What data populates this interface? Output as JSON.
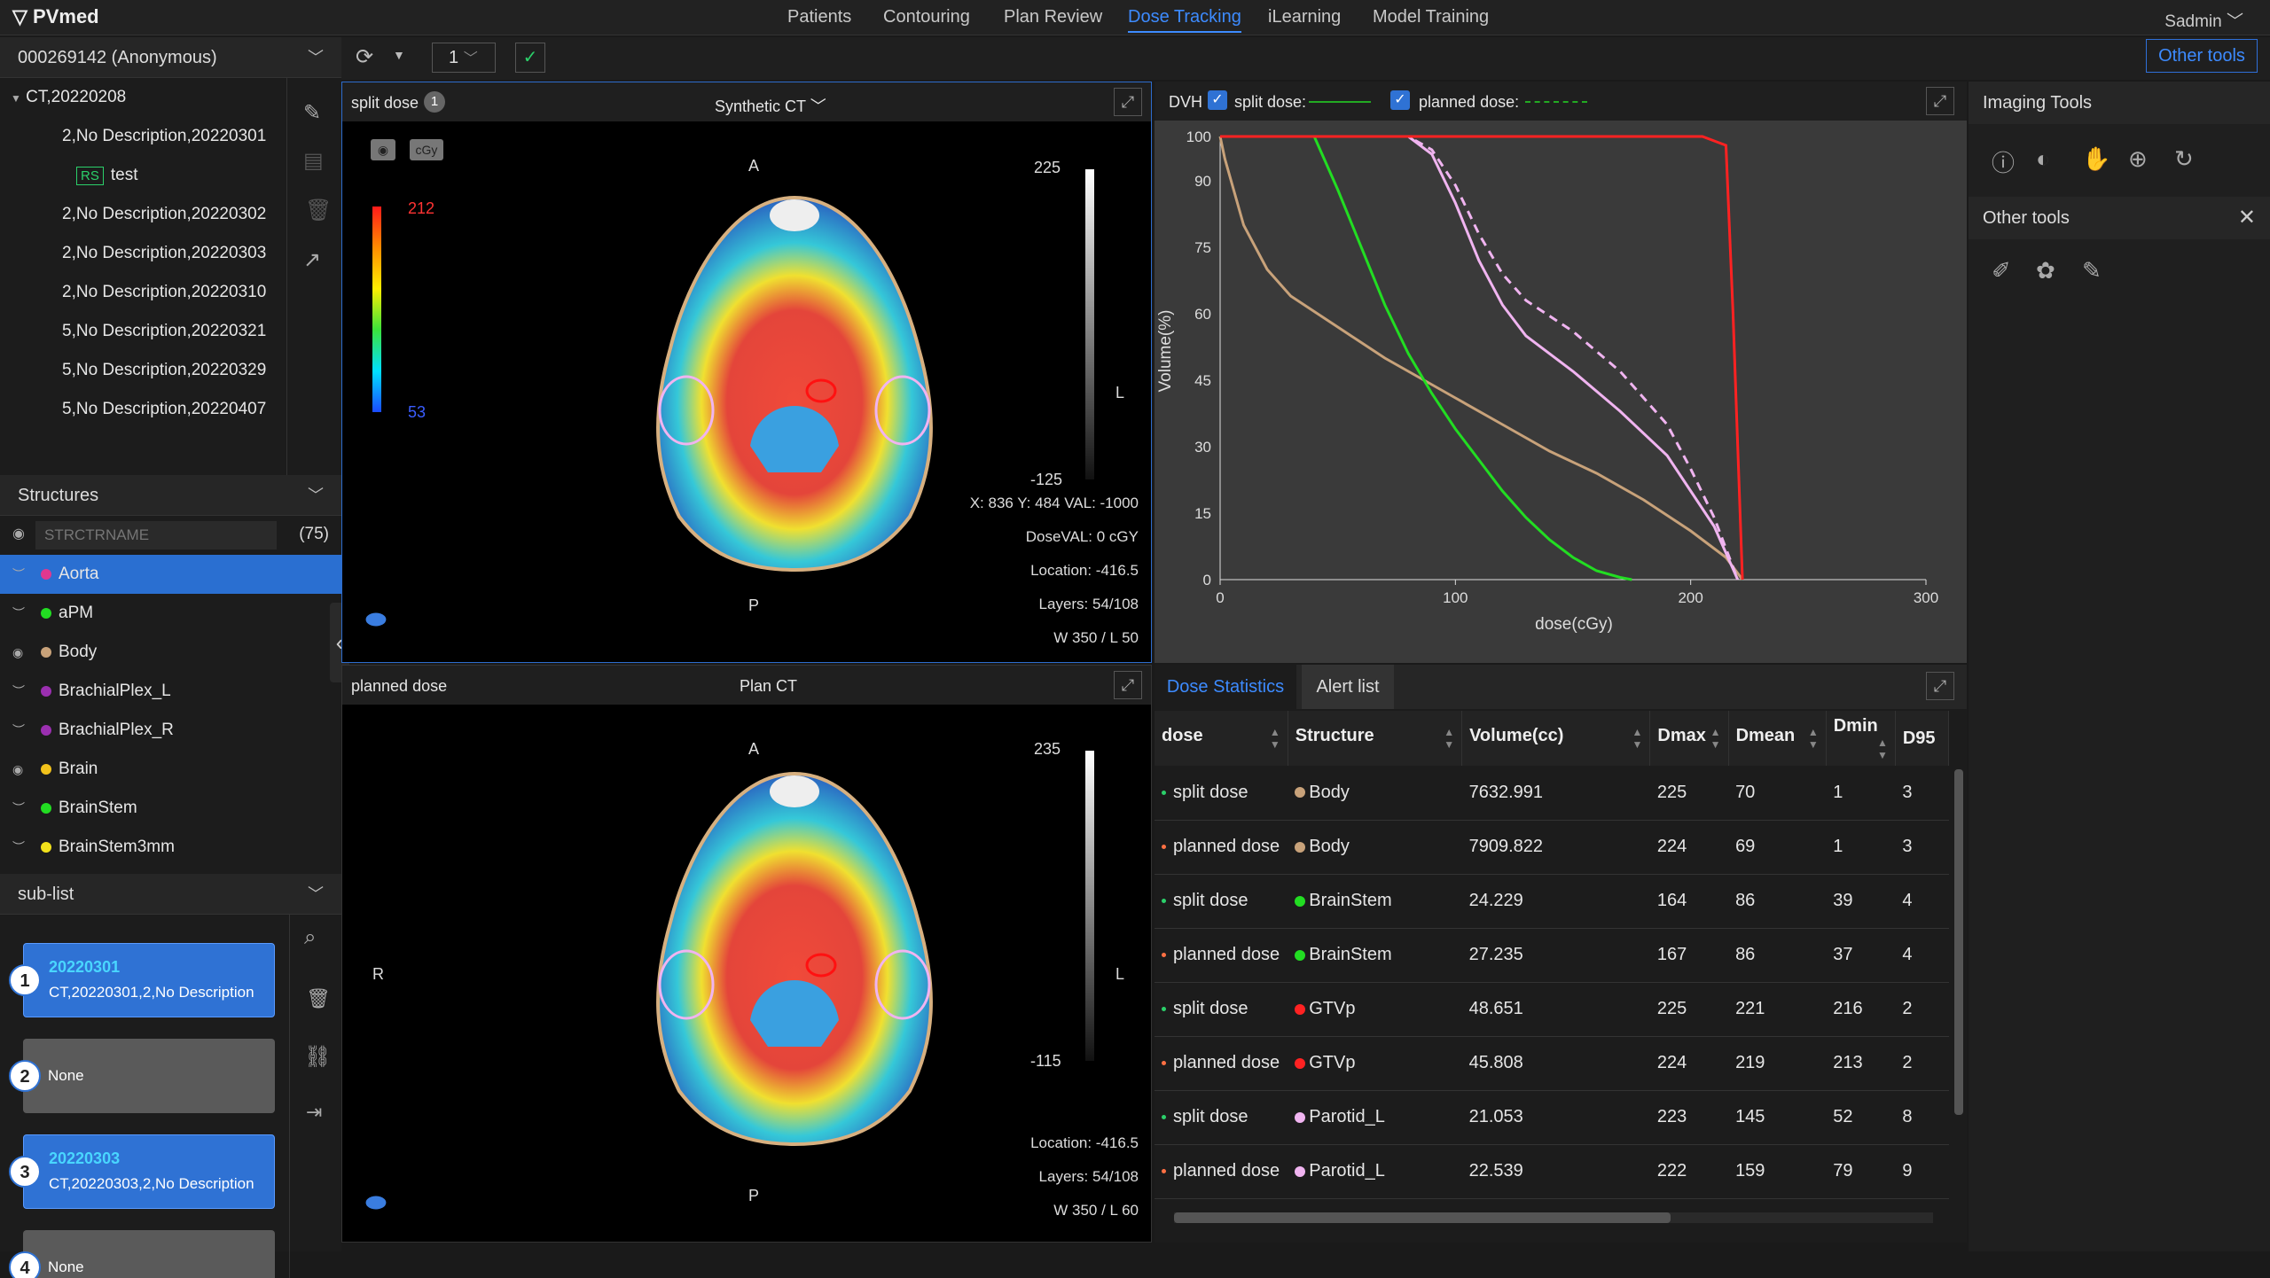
{
  "app": {
    "logo": "PVmed",
    "user": "Sadmin"
  },
  "nav": [
    {
      "label": "Patients"
    },
    {
      "label": "Contouring"
    },
    {
      "label": "Plan Review"
    },
    {
      "label": "Dose Tracking"
    },
    {
      "label": "iLearning"
    },
    {
      "label": "Model Training"
    }
  ],
  "toolbar": {
    "layer_select": "1",
    "other_tools": "Other tools"
  },
  "patient": {
    "id": "000269142 (Anonymous)",
    "ct": "CT,20220208",
    "series": [
      "2,No Description,20220301",
      "test",
      "2,No Description,20220302",
      "2,No Description,20220303",
      "2,No Description,20220310",
      "5,No Description,20220321",
      "5,No Description,20220329",
      "5,No Description,20220407"
    ],
    "rs_badge": "RS"
  },
  "structures": {
    "title": "Structures",
    "placeholder": "STRCTRNAME",
    "count": "(75)",
    "items": [
      {
        "name": "Aorta",
        "color": "#e0388f"
      },
      {
        "name": "aPM",
        "color": "#22dd22"
      },
      {
        "name": "Body",
        "color": "#c8a27a"
      },
      {
        "name": "BrachialPlex_L",
        "color": "#9b2fb0"
      },
      {
        "name": "BrachialPlex_R",
        "color": "#9b2fb0"
      },
      {
        "name": "Brain",
        "color": "#f2c21b"
      },
      {
        "name": "BrainStem",
        "color": "#22dd22"
      },
      {
        "name": "BrainStem3mm",
        "color": "#f2e21b"
      }
    ]
  },
  "sublist": {
    "title": "sub-list",
    "items": [
      {
        "n": "1",
        "date": "20220301",
        "desc": "CT,20220301,2,No Description"
      },
      {
        "n": "2",
        "date": "",
        "desc": "None"
      },
      {
        "n": "3",
        "date": "20220303",
        "desc": "CT,20220303,2,No Description"
      },
      {
        "n": "4",
        "date": "",
        "desc": "None"
      }
    ]
  },
  "view_top": {
    "title": "split dose",
    "badge": "1",
    "source": "Synthetic CT",
    "cgy": "cGy",
    "bar_max": "212",
    "bar_min": "53",
    "scale_max": "225",
    "scale_min": "-125",
    "orient_a": "A",
    "orient_p": "P",
    "orient_l": "L",
    "coord": "X: 836 Y: 484 VAL: -1000",
    "doseval": "DoseVAL: 0 cGY",
    "location": "Location: -416.5",
    "layers": "Layers: 54/108",
    "window": "W 350 / L 50"
  },
  "view_bottom": {
    "title": "planned dose",
    "source": "Plan CT",
    "scale_max": "235",
    "scale_min": "-115",
    "orient_a": "A",
    "orient_p": "P",
    "orient_l": "L",
    "orient_r": "R",
    "location": "Location: -416.5",
    "layers": "Layers: 54/108",
    "window": "W 350 / L 60"
  },
  "dvh": {
    "title": "DVH",
    "legend_split": "split dose:",
    "legend_planned": "planned dose:"
  },
  "chart_data": {
    "type": "line",
    "title": "",
    "xlabel": "dose(cGy)",
    "ylabel": "Volume(%)",
    "xlim": [
      0,
      300
    ],
    "ylim": [
      0,
      100
    ],
    "xticks": [
      0,
      100,
      200,
      300
    ],
    "yticks": [
      0,
      15,
      30,
      45,
      60,
      75,
      90,
      100
    ],
    "series": [
      {
        "color": "#c8a27a",
        "style": "solid",
        "x": [
          0,
          2,
          10,
          20,
          30,
          50,
          70,
          100,
          120,
          140,
          160,
          180,
          200,
          215,
          222
        ],
        "y": [
          100,
          95,
          80,
          70,
          64,
          57,
          50,
          41,
          35,
          29,
          24,
          18,
          11,
          5,
          0
        ]
      },
      {
        "color": "#22dd22",
        "style": "solid",
        "x": [
          40,
          50,
          60,
          70,
          80,
          90,
          100,
          110,
          120,
          130,
          140,
          150,
          160,
          170,
          175
        ],
        "y": [
          100,
          88,
          75,
          62,
          51,
          42,
          34,
          27,
          20,
          14,
          9,
          5,
          2,
          0.5,
          0
        ]
      },
      {
        "color": "#f0b4f0",
        "style": "solid",
        "x": [
          0,
          80,
          90,
          100,
          110,
          120,
          130,
          150,
          170,
          190,
          200,
          210,
          220
        ],
        "y": [
          100,
          100,
          96,
          85,
          72,
          62,
          55,
          47,
          38,
          28,
          20,
          12,
          0
        ]
      },
      {
        "color": "#f0b4f0",
        "style": "dashed",
        "x": [
          0,
          80,
          90,
          100,
          110,
          120,
          130,
          150,
          170,
          190,
          200,
          210,
          220
        ],
        "y": [
          100,
          100,
          97,
          89,
          78,
          69,
          63,
          56,
          47,
          35,
          25,
          14,
          0
        ]
      },
      {
        "color": "#ff2222",
        "style": "solid",
        "x": [
          0,
          205,
          215,
          218,
          222
        ],
        "y": [
          100,
          100,
          98,
          60,
          0
        ]
      }
    ]
  },
  "stats": {
    "tab_active": "Dose Statistics",
    "tab_other": "Alert list",
    "headers": [
      "dose",
      "Structure",
      "Volume(cc)",
      "Dmax",
      "Dmean",
      "Dmin",
      "D95"
    ],
    "rows": [
      {
        "dose": "split dose",
        "struct": "Body",
        "color": "#c8a27a",
        "vol": "7632.991",
        "dmax": "225",
        "dmean": "70",
        "dmin": "1",
        "d95": "3"
      },
      {
        "dose": "planned dose",
        "struct": "Body",
        "color": "#c8a27a",
        "vol": "7909.822",
        "dmax": "224",
        "dmean": "69",
        "dmin": "1",
        "d95": "3"
      },
      {
        "dose": "split dose",
        "struct": "BrainStem",
        "color": "#22dd22",
        "vol": "24.229",
        "dmax": "164",
        "dmean": "86",
        "dmin": "39",
        "d95": "4"
      },
      {
        "dose": "planned dose",
        "struct": "BrainStem",
        "color": "#22dd22",
        "vol": "27.235",
        "dmax": "167",
        "dmean": "86",
        "dmin": "37",
        "d95": "4"
      },
      {
        "dose": "split dose",
        "struct": "GTVp",
        "color": "#ff2222",
        "vol": "48.651",
        "dmax": "225",
        "dmean": "221",
        "dmin": "216",
        "d95": "2"
      },
      {
        "dose": "planned dose",
        "struct": "GTVp",
        "color": "#ff2222",
        "vol": "45.808",
        "dmax": "224",
        "dmean": "219",
        "dmin": "213",
        "d95": "2"
      },
      {
        "dose": "split dose",
        "struct": "Parotid_L",
        "color": "#f0b4f0",
        "vol": "21.053",
        "dmax": "223",
        "dmean": "145",
        "dmin": "52",
        "d95": "8"
      },
      {
        "dose": "planned dose",
        "struct": "Parotid_L",
        "color": "#f0b4f0",
        "vol": "22.539",
        "dmax": "222",
        "dmean": "159",
        "dmin": "79",
        "d95": "9"
      }
    ]
  },
  "right": {
    "imaging": "Imaging Tools",
    "other": "Other tools"
  }
}
